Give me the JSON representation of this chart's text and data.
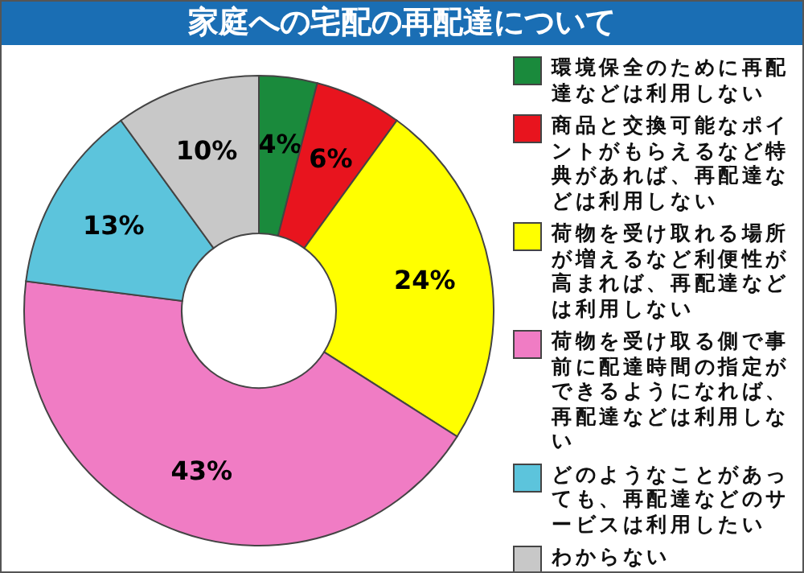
{
  "chart_data": {
    "type": "donut",
    "title": "家庭への宅配の再配達について",
    "categories": [
      "環境保全のために再配達などは利用しない",
      "商品と交換可能なポイントがもらえるなど特典があれば、再配達などは利用しない",
      "荷物を受け取れる場所が増えるなど利便性が高まれば、再配達などは利用しない",
      "荷物を受け取る側で事前に配達時間の指定ができるようになれば、再配達などは利用しない",
      "どのようなことがあっても、再配達などのサービスは利用したい",
      "わからない"
    ],
    "values": [
      4,
      6,
      24,
      43,
      13,
      10
    ],
    "value_labels": [
      "4%",
      "6%",
      "24%",
      "43%",
      "13%",
      "10%"
    ],
    "colors": [
      "#1a8a3c",
      "#e8141e",
      "#ffff00",
      "#f07cc4",
      "#5cc4dc",
      "#c8c8c8"
    ],
    "legend": "right"
  }
}
